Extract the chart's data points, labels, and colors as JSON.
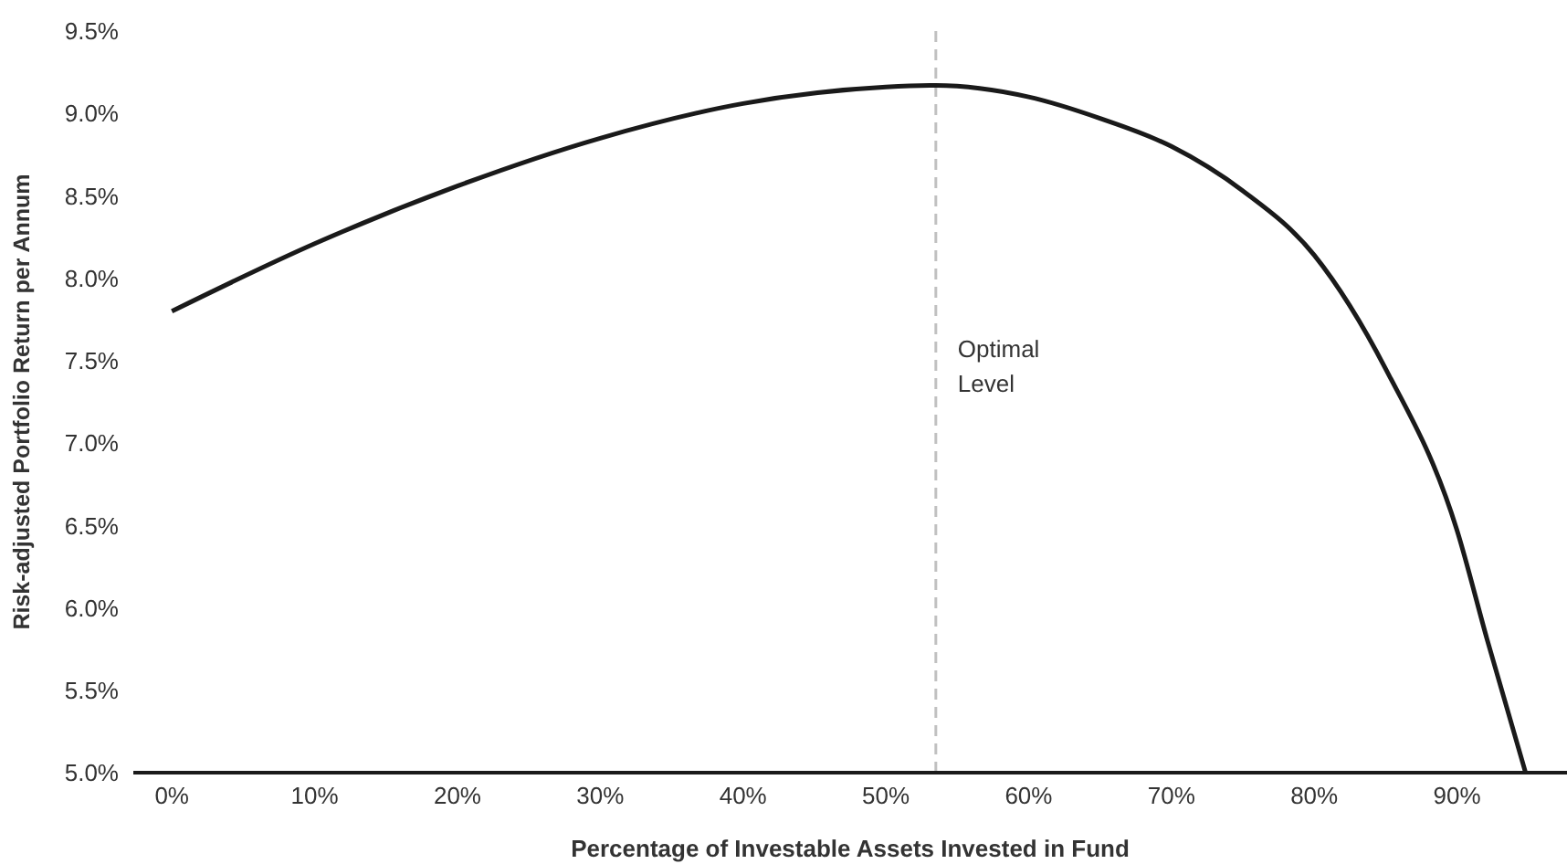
{
  "chart_data": {
    "type": "line",
    "xlabel": "Percentage of Investable Assets Invested in Fund",
    "ylabel": "Risk-adjusted Portfolio Return per Annum",
    "x": [
      0,
      10,
      20,
      30,
      40,
      50,
      53.5,
      60,
      65,
      70,
      75,
      80,
      85,
      90,
      92.1,
      94.8
    ],
    "series": [
      {
        "color": "#1a1a1a",
        "values": [
          7.8,
          8.21,
          8.56,
          8.85,
          9.06,
          9.16,
          9.17,
          9.1,
          8.97,
          8.8,
          8.53,
          8.14,
          7.45,
          6.47,
          5.81,
          5.0
        ]
      }
    ],
    "xlim": [
      -2.7,
      97.7
    ],
    "xticks": [
      {
        "value": 0,
        "label": "0%"
      },
      {
        "value": 10,
        "label": "10%"
      },
      {
        "value": 20,
        "label": "20%"
      },
      {
        "value": 30,
        "label": "30%"
      },
      {
        "value": 40,
        "label": "40%"
      },
      {
        "value": 50,
        "label": "50%"
      },
      {
        "value": 60,
        "label": "60%"
      },
      {
        "value": 70,
        "label": "70%"
      },
      {
        "value": 80,
        "label": "80%"
      },
      {
        "value": 90,
        "label": "90%"
      }
    ],
    "ylim": [
      5,
      9.5
    ],
    "yticks": [
      {
        "value": 5,
        "label": "5.0%"
      },
      {
        "value": 5.5,
        "label": "5.5%"
      },
      {
        "value": 6,
        "label": "6.0%"
      },
      {
        "value": 6.5,
        "label": "6.5%"
      },
      {
        "value": 7,
        "label": "7.0%"
      },
      {
        "value": 7.5,
        "label": "7.5%"
      },
      {
        "value": 8,
        "label": "8.0%"
      },
      {
        "value": 8.5,
        "label": "8.5%"
      },
      {
        "value": 9,
        "label": "9.0%"
      },
      {
        "value": 9.5,
        "label": "9.5%"
      }
    ],
    "ref_lines": [
      {
        "axis": "x",
        "value": 53.5,
        "label": "Optimal Level",
        "color": "#c0c0c0",
        "line_style": "dashed"
      }
    ],
    "grid": false,
    "legend": false,
    "marker": "none",
    "line_style": "solid"
  }
}
